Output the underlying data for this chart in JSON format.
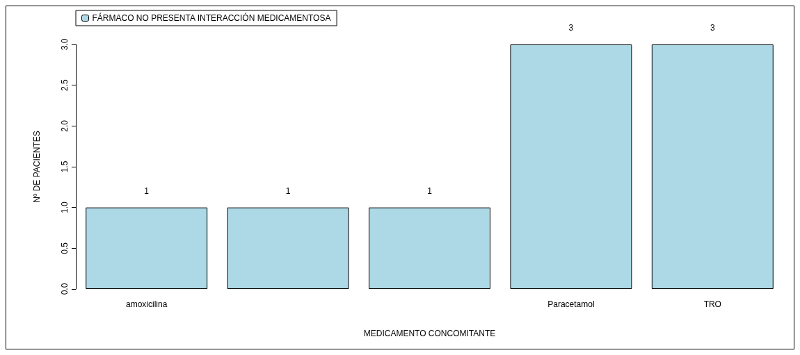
{
  "chart_data": {
    "type": "bar",
    "xlabel": "MEDICAMENTO CONCOMITANTE",
    "ylabel": "Nº DE PACIENTES",
    "categories": [
      "amoxicilina",
      null,
      null,
      "Paracetamol",
      "TRO"
    ],
    "series": [
      {
        "name": "FÁRMACO NO PRESENTA INTERACCIÓN MEDICAMENTOSA",
        "color": "#add8e6",
        "values": [
          1,
          1,
          1,
          3,
          3
        ]
      }
    ],
    "ylim": [
      0,
      3
    ],
    "yticks": [
      {
        "value": 0,
        "label": "0.0"
      },
      {
        "value": 0.5,
        "label": "0.5"
      },
      {
        "value": 1,
        "label": "1.0"
      },
      {
        "value": 1.5,
        "label": "1.5"
      },
      {
        "value": 2,
        "label": "2.0"
      },
      {
        "value": 2.5,
        "label": "2.5"
      },
      {
        "value": 3,
        "label": "3.0"
      }
    ],
    "grid": false,
    "legend": "top left",
    "data_labels": true
  }
}
